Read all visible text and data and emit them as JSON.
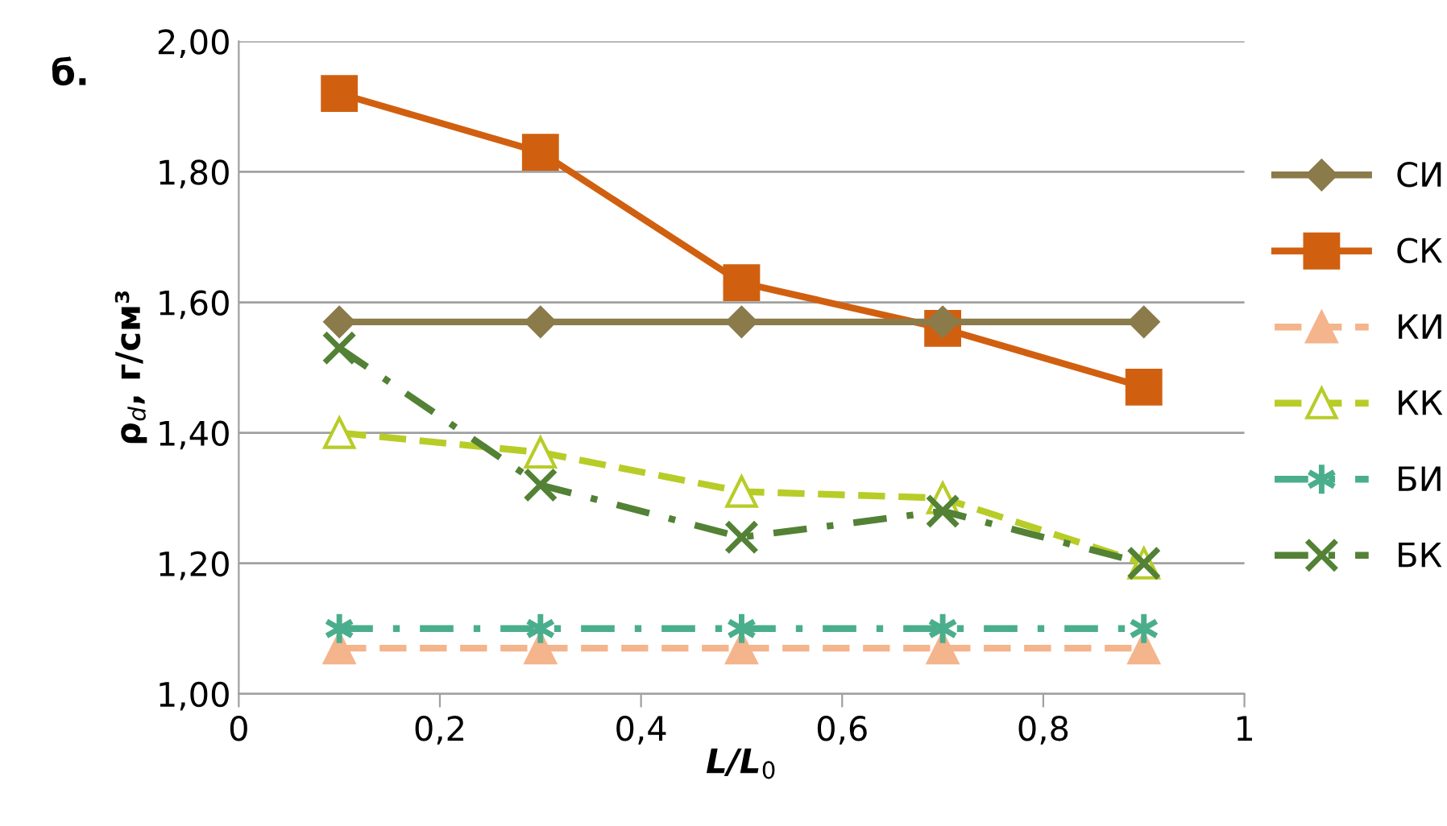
{
  "chart_data": {
    "type": "line",
    "x": [
      0.1,
      0.3,
      0.5,
      0.7,
      0.9
    ],
    "series": [
      {
        "name": "СИ",
        "color": "#8b7b4b",
        "marker": "diamond",
        "line_style": "solid",
        "values": [
          1.57,
          1.57,
          1.57,
          1.57,
          1.57
        ]
      },
      {
        "name": "СК",
        "color": "#d06010",
        "marker": "square",
        "line_style": "solid",
        "values": [
          1.92,
          1.83,
          1.63,
          1.56,
          1.47
        ]
      },
      {
        "name": "КИ",
        "color": "#f4b48c",
        "marker": "triangle",
        "line_style": "dashed",
        "values": [
          1.07,
          1.07,
          1.07,
          1.07,
          1.07
        ]
      },
      {
        "name": "КК",
        "color": "#b8cc28",
        "marker": "triangle",
        "line_style": "dashed",
        "values": [
          1.4,
          1.37,
          1.31,
          1.3,
          1.2
        ]
      },
      {
        "name": "БИ",
        "color": "#4aae8c",
        "marker": "cross",
        "line_style": "dashdot",
        "values": [
          1.1,
          1.1,
          1.1,
          1.1,
          1.1
        ]
      },
      {
        "name": "БК",
        "color": "#538135",
        "marker": "cross",
        "line_style": "dashdot",
        "values": [
          1.53,
          1.32,
          1.24,
          1.28,
          1.2
        ]
      }
    ],
    "xlabel": "L/L$_{0}$",
    "ylabel": "ρ$_{d}$, г/см³",
    "annotations": [
      "б."
    ],
    "xlim": [
      0,
      1
    ],
    "xticks": [
      0,
      {
        "value": 0.2,
        "label": "0,2"
      },
      {
        "value": 0.4,
        "label": "0,4"
      },
      {
        "value": 0.6,
        "label": "0,6"
      },
      {
        "value": 0.8,
        "label": "0,8"
      },
      1
    ],
    "ylim": [
      1.0,
      2.0
    ],
    "yticks": [
      {
        "value": 1.0,
        "label": "1,00"
      },
      {
        "value": 1.2,
        "label": "1,20"
      },
      {
        "value": 1.4,
        "label": "1,40"
      },
      {
        "value": 1.6,
        "label": "1,60"
      },
      {
        "value": 1.8,
        "label": "1,80"
      },
      {
        "value": 2.0,
        "label": "2,00"
      }
    ],
    "grid": "y",
    "legend": "right"
  }
}
